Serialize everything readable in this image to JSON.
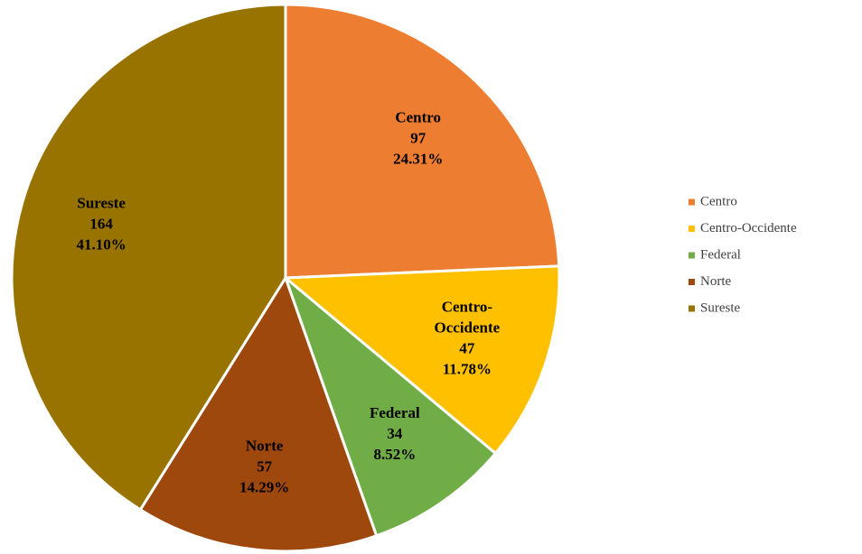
{
  "chart_data": {
    "type": "pie",
    "categories": [
      "Centro",
      "Centro-Occidente",
      "Federal",
      "Norte",
      "Sureste"
    ],
    "values": [
      97,
      47,
      34,
      57,
      164
    ],
    "percent_labels": [
      "24.31%",
      "11.78%",
      "8.52%",
      "14.29%",
      "41.10%"
    ],
    "colors": [
      "#ED7D31",
      "#FFC000",
      "#70AD47",
      "#9E480E",
      "#997300"
    ],
    "legend": "right"
  }
}
